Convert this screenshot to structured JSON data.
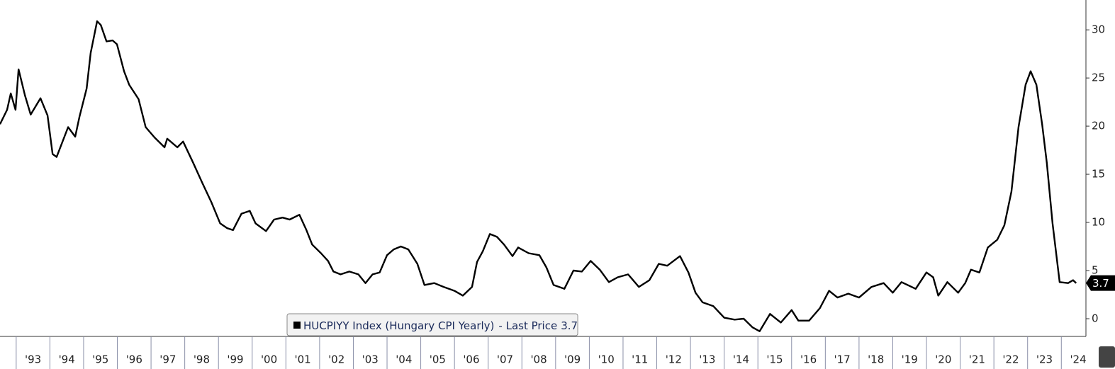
{
  "chart_data": {
    "type": "line",
    "series": [
      {
        "name": "HUCPIYY Index (Hungary CPI Yearly)",
        "color": "#000000",
        "x": [
          1992.52,
          1992.73,
          1992.84,
          1992.98,
          1993.07,
          1993.26,
          1993.43,
          1993.72,
          1993.93,
          1994.08,
          1994.2,
          1994.54,
          1994.75,
          1994.88,
          1995.09,
          1995.21,
          1995.4,
          1995.51,
          1995.68,
          1995.86,
          1995.99,
          1996.2,
          1996.35,
          1996.63,
          1996.84,
          1997.11,
          1997.4,
          1997.48,
          1997.78,
          1997.95,
          1998.25,
          1998.52,
          1998.79,
          1999.05,
          1999.26,
          1999.43,
          1999.68,
          1999.93,
          2000.1,
          2000.41,
          2000.65,
          2000.9,
          2001.11,
          2001.4,
          2001.61,
          2001.78,
          2002.04,
          2002.25,
          2002.41,
          2002.62,
          2002.88,
          2003.15,
          2003.36,
          2003.57,
          2003.78,
          2004.0,
          2004.2,
          2004.41,
          2004.63,
          2004.9,
          2005.11,
          2005.4,
          2005.68,
          2006.0,
          2006.25,
          2006.52,
          2006.67,
          2006.84,
          2007.05,
          2007.26,
          2007.47,
          2007.72,
          2007.89,
          2008.2,
          2008.52,
          2008.73,
          2008.94,
          2009.26,
          2009.53,
          2009.78,
          2010.04,
          2010.31,
          2010.58,
          2010.84,
          2011.15,
          2011.47,
          2011.78,
          2012.06,
          2012.31,
          2012.69,
          2012.94,
          2013.15,
          2013.36,
          2013.68,
          2014.0,
          2014.31,
          2014.58,
          2014.84,
          2015.05,
          2015.36,
          2015.68,
          2016.0,
          2016.2,
          2016.52,
          2016.84,
          2017.11,
          2017.36,
          2017.68,
          2018.0,
          2018.37,
          2018.73,
          2019.0,
          2019.26,
          2019.68,
          2020.0,
          2020.2,
          2020.35,
          2020.62,
          2020.94,
          2021.15,
          2021.32,
          2021.57,
          2021.82,
          2022.1,
          2022.31,
          2022.52,
          2022.73,
          2022.94,
          2023.09,
          2023.26,
          2023.43,
          2023.57,
          2023.74,
          2023.95,
          2024.2,
          2024.35,
          2024.44
        ],
        "values": [
          20.2,
          21.7,
          23.4,
          21.7,
          25.9,
          23.2,
          21.2,
          22.9,
          21.1,
          17.1,
          16.8,
          19.9,
          18.9,
          21.0,
          23.9,
          27.6,
          30.9,
          30.5,
          28.8,
          28.9,
          28.5,
          25.7,
          24.3,
          22.8,
          19.9,
          18.8,
          17.8,
          18.7,
          17.8,
          18.4,
          16.2,
          14.1,
          12.1,
          9.9,
          9.4,
          9.2,
          10.9,
          11.2,
          9.9,
          9.1,
          10.3,
          10.5,
          10.3,
          10.8,
          9.2,
          7.7,
          6.8,
          6.0,
          4.9,
          4.6,
          4.9,
          4.6,
          3.7,
          4.6,
          4.8,
          6.6,
          7.2,
          7.5,
          7.2,
          5.7,
          3.5,
          3.7,
          3.3,
          2.9,
          2.4,
          3.3,
          5.9,
          7.0,
          8.8,
          8.5,
          7.7,
          6.5,
          7.4,
          6.8,
          6.6,
          5.3,
          3.5,
          3.1,
          5.0,
          4.9,
          6.0,
          5.1,
          3.8,
          4.3,
          4.6,
          3.3,
          4.0,
          5.7,
          5.5,
          6.5,
          4.8,
          2.7,
          1.7,
          1.3,
          0.1,
          -0.1,
          0.0,
          -0.9,
          -1.3,
          0.5,
          -0.4,
          0.9,
          -0.2,
          -0.2,
          1.1,
          2.9,
          2.2,
          2.6,
          2.2,
          3.3,
          3.7,
          2.7,
          3.8,
          3.1,
          4.8,
          4.3,
          2.4,
          3.8,
          2.7,
          3.7,
          5.1,
          4.8,
          7.4,
          8.2,
          9.7,
          13.2,
          19.9,
          24.3,
          25.7,
          24.3,
          20.2,
          16.2,
          9.9,
          3.8,
          3.7,
          4.0,
          3.7
        ]
      }
    ],
    "legend_suffix": "- Last Price",
    "last_value": 3.7,
    "xlim": [
      1992.52,
      2024.73
    ],
    "ylim": [
      -1.84,
      33.1
    ],
    "yticks": [
      0,
      5,
      10,
      15,
      20,
      25,
      30
    ],
    "xticks": [
      {
        "value": 1993,
        "label": "'93"
      },
      {
        "value": 1994,
        "label": "'94"
      },
      {
        "value": 1995,
        "label": "'95"
      },
      {
        "value": 1996,
        "label": "'96"
      },
      {
        "value": 1997,
        "label": "'97"
      },
      {
        "value": 1998,
        "label": "'98"
      },
      {
        "value": 1999,
        "label": "'99"
      },
      {
        "value": 2000,
        "label": "'00"
      },
      {
        "value": 2001,
        "label": "'01"
      },
      {
        "value": 2002,
        "label": "'02"
      },
      {
        "value": 2003,
        "label": "'03"
      },
      {
        "value": 2004,
        "label": "'04"
      },
      {
        "value": 2005,
        "label": "'05"
      },
      {
        "value": 2006,
        "label": "'06"
      },
      {
        "value": 2007,
        "label": "'07"
      },
      {
        "value": 2008,
        "label": "'08"
      },
      {
        "value": 2009,
        "label": "'09"
      },
      {
        "value": 2010,
        "label": "'10"
      },
      {
        "value": 2011,
        "label": "'11"
      },
      {
        "value": 2012,
        "label": "'12"
      },
      {
        "value": 2013,
        "label": "'13"
      },
      {
        "value": 2014,
        "label": "'14"
      },
      {
        "value": 2015,
        "label": "'15"
      },
      {
        "value": 2016,
        "label": "'16"
      },
      {
        "value": 2017,
        "label": "'17"
      },
      {
        "value": 2018,
        "label": "'18"
      },
      {
        "value": 2019,
        "label": "'19"
      },
      {
        "value": 2020,
        "label": "'20"
      },
      {
        "value": 2021,
        "label": "'21"
      },
      {
        "value": 2022,
        "label": "'22"
      },
      {
        "value": 2023,
        "label": "'23"
      },
      {
        "value": 2024,
        "label": "'24"
      }
    ]
  }
}
